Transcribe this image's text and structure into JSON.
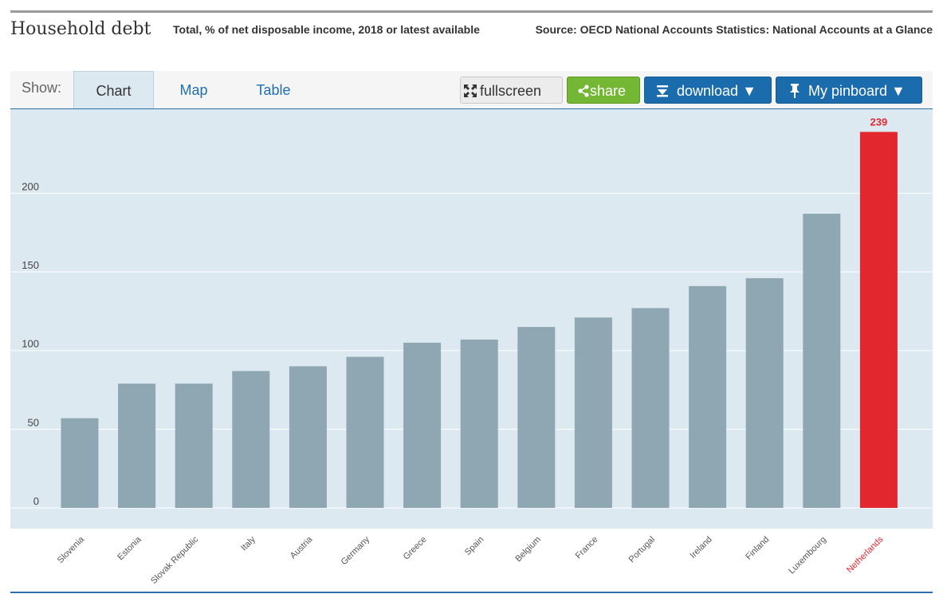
{
  "header": {
    "title": "Household debt",
    "subtitle": "Total, % of net disposable income, 2018 or latest available",
    "source": "Source: OECD National Accounts Statistics: National Accounts at a Glance"
  },
  "toolbar": {
    "show_label": "Show:",
    "tabs": [
      {
        "label": "Chart",
        "active": true
      },
      {
        "label": "Map",
        "active": false
      },
      {
        "label": "Table",
        "active": false
      }
    ],
    "fullscreen_label": "fullscreen",
    "share_label": "share",
    "download_label": "download ▼",
    "pinboard_label": "My pinboard ▼"
  },
  "colors": {
    "bar": "#8fa6b3",
    "highlight": "#e3272f",
    "plot_background": "#dde9f0",
    "accent": "#1a6cad",
    "share": "#74b734"
  },
  "chart_data": {
    "type": "bar",
    "title": "Household debt",
    "subtitle": "Total, % of net disposable income, 2018 or latest available",
    "xlabel": "",
    "ylabel": "",
    "categories": [
      "Slovenia",
      "Estonia",
      "Slovak Republic",
      "Italy",
      "Austria",
      "Germany",
      "Greece",
      "Spain",
      "Belgium",
      "France",
      "Portugal",
      "Ireland",
      "Finland",
      "Luxembourg",
      "Netherlands"
    ],
    "values": [
      57,
      79,
      79,
      87,
      90,
      96,
      105,
      107,
      115,
      121,
      127,
      141,
      146,
      187,
      239
    ],
    "highlight_category": "Netherlands",
    "highlight_value_label": "239",
    "yticks": [
      0,
      50,
      100,
      150,
      200
    ],
    "ylim": [
      0,
      245
    ],
    "grid": true,
    "legend": "none"
  }
}
